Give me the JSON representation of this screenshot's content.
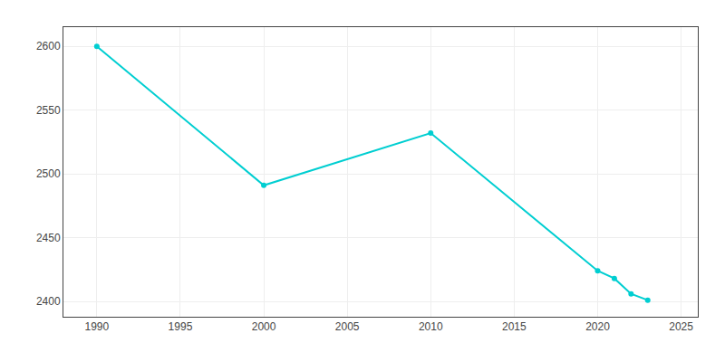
{
  "chart_data": {
    "type": "line",
    "x": [
      1990,
      2000,
      2010,
      2020,
      2021,
      2022,
      2023
    ],
    "values": [
      2600,
      2491,
      2532,
      2424,
      2418,
      2406,
      2401
    ],
    "color": "#00CED1",
    "marker": "circle",
    "xlim": [
      1988,
      2026
    ],
    "ylim": [
      2388,
      2615
    ],
    "xticks": [
      1990,
      1995,
      2000,
      2005,
      2010,
      2015,
      2020,
      2025
    ],
    "yticks": [
      2400,
      2450,
      2500,
      2550,
      2600
    ],
    "grid": true
  }
}
